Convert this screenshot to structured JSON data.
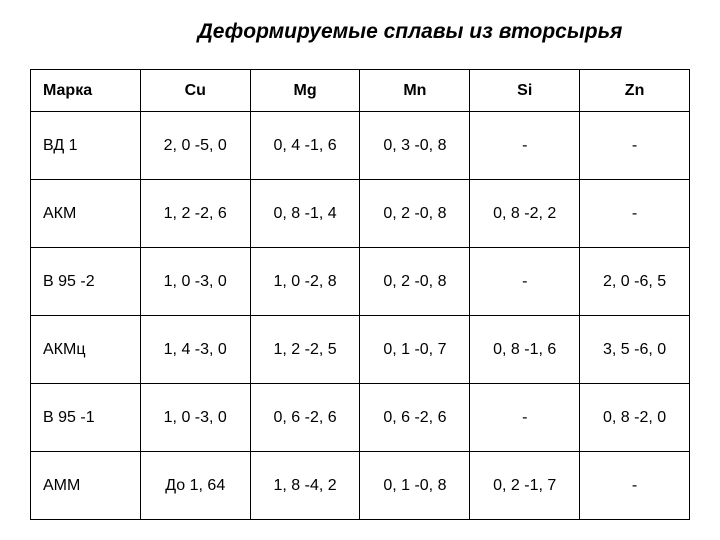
{
  "title": "Деформируемые сплавы из вторсырья",
  "table": {
    "columns": [
      "Марка",
      "Cu",
      "Mg",
      "Mn",
      "Si",
      "Zn"
    ],
    "rows": [
      [
        "ВД 1",
        "2, 0 -5, 0",
        "0, 4 -1, 6",
        "0, 3 -0, 8",
        "-",
        "-"
      ],
      [
        "АКМ",
        "1, 2 -2, 6",
        "0, 8 -1, 4",
        "0, 2 -0, 8",
        "0, 8 -2, 2",
        "-"
      ],
      [
        "В 95 -2",
        "1, 0 -3, 0",
        "1, 0 -2, 8",
        "0, 2 -0, 8",
        "-",
        "2, 0 -6, 5"
      ],
      [
        "АКМц",
        "1, 4 -3, 0",
        "1, 2 -2, 5",
        "0, 1 -0, 7",
        "0, 8 -1, 6",
        "3, 5 -6, 0"
      ],
      [
        "В 95 -1",
        "1, 0 -3, 0",
        "0, 6 -2, 6",
        "0, 6 -2, 6",
        "-",
        "0, 8 -2, 0"
      ],
      [
        "АММ",
        "До 1, 64",
        "1, 8 -4, 2",
        "0, 1 -0, 8",
        "0, 2 -1, 7",
        "-"
      ]
    ],
    "column_widths": [
      "16%",
      "17%",
      "17%",
      "17%",
      "17%",
      "16%"
    ],
    "border_color": "#000000",
    "background_color": "#ffffff",
    "text_color": "#000000",
    "header_fontsize": 16,
    "cell_fontsize": 16,
    "title_fontsize": 21
  }
}
